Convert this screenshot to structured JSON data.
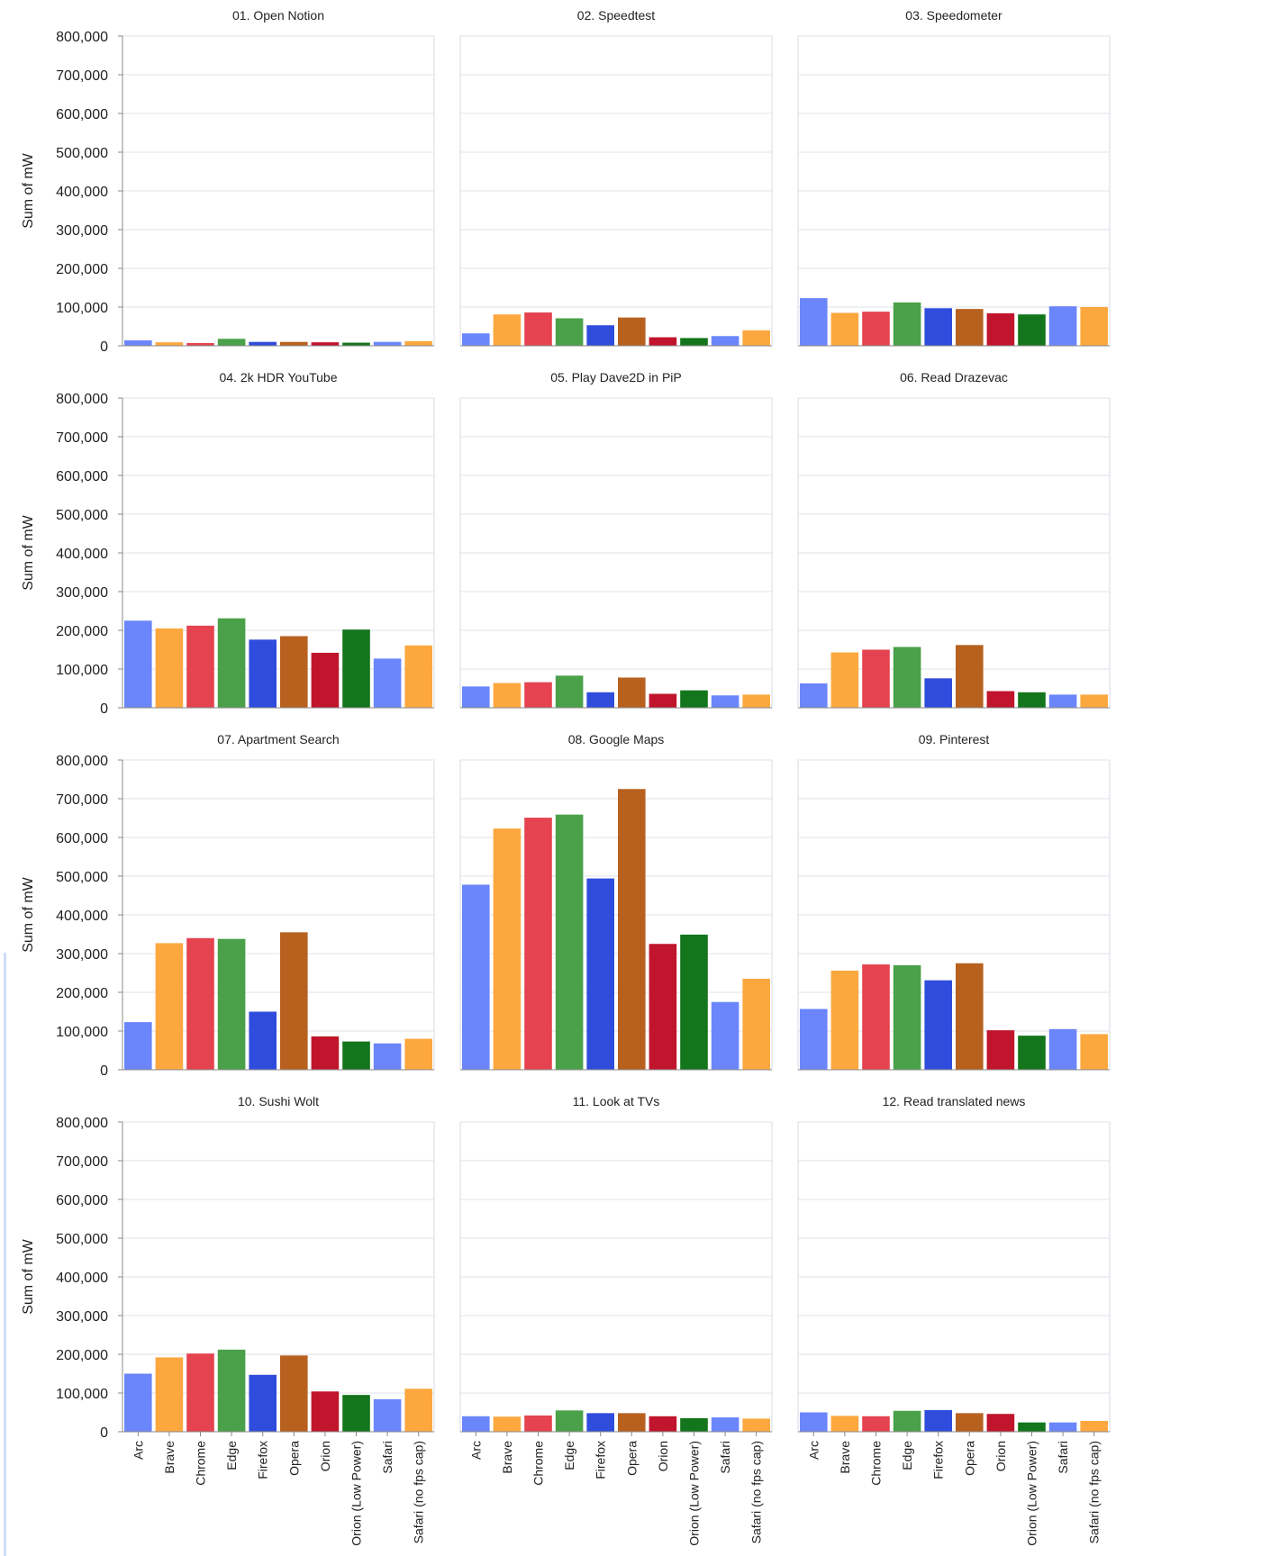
{
  "browsers": [
    "Arc",
    "Brave",
    "Chrome",
    "Edge",
    "Firefox",
    "Opera",
    "Orion",
    "Orion (Low Power)",
    "Safari",
    "Safari (no fps cap)"
  ],
  "colors": [
    "#6b86fb",
    "#fca83f",
    "#e4434f",
    "#4aa14a",
    "#2f4cdc",
    "#b8611f",
    "#c0152c",
    "#13751c",
    "#6b86fb",
    "#fca83f"
  ],
  "y_axis_label": "Sum of mW",
  "chart_data": [
    {
      "type": "bar",
      "title": "01. Open Notion",
      "ylabel": "Sum of mW",
      "ylim": [
        0,
        800000
      ],
      "yticks": [
        "0",
        "100,000",
        "200,000",
        "300,000",
        "400,000",
        "500,000",
        "600,000",
        "700,000",
        "800,000"
      ],
      "categories": [
        "Arc",
        "Brave",
        "Chrome",
        "Edge",
        "Firefox",
        "Opera",
        "Orion",
        "Orion (Low Power)",
        "Safari",
        "Safari (no fps cap)"
      ],
      "values": [
        14000,
        9000,
        7000,
        18000,
        10000,
        10000,
        9000,
        8000,
        10000,
        12000
      ]
    },
    {
      "type": "bar",
      "title": "02. Speedtest",
      "ylabel": "Sum of mW",
      "ylim": [
        0,
        800000
      ],
      "yticks": [
        "0",
        "100,000",
        "200,000",
        "300,000",
        "400,000",
        "500,000",
        "600,000",
        "700,000",
        "800,000"
      ],
      "categories": [
        "Arc",
        "Brave",
        "Chrome",
        "Edge",
        "Firefox",
        "Opera",
        "Orion",
        "Orion (Low Power)",
        "Safari",
        "Safari (no fps cap)"
      ],
      "values": [
        32000,
        81000,
        86000,
        71000,
        53000,
        73000,
        22000,
        20000,
        25000,
        40000
      ]
    },
    {
      "type": "bar",
      "title": "03. Speedometer",
      "ylabel": "Sum of mW",
      "ylim": [
        0,
        800000
      ],
      "yticks": [
        "0",
        "100,000",
        "200,000",
        "300,000",
        "400,000",
        "500,000",
        "600,000",
        "700,000",
        "800,000"
      ],
      "categories": [
        "Arc",
        "Brave",
        "Chrome",
        "Edge",
        "Firefox",
        "Opera",
        "Orion",
        "Orion (Low Power)",
        "Safari",
        "Safari (no fps cap)"
      ],
      "values": [
        123000,
        85000,
        88000,
        112000,
        97000,
        95000,
        84000,
        81000,
        102000,
        100000
      ]
    },
    {
      "type": "bar",
      "title": "04. 2k HDR YouTube",
      "ylabel": "Sum of mW",
      "ylim": [
        0,
        800000
      ],
      "yticks": [
        "0",
        "100,000",
        "200,000",
        "300,000",
        "400,000",
        "500,000",
        "600,000",
        "700,000",
        "800,000"
      ],
      "categories": [
        "Arc",
        "Brave",
        "Chrome",
        "Edge",
        "Firefox",
        "Opera",
        "Orion",
        "Orion (Low Power)",
        "Safari",
        "Safari (no fps cap)"
      ],
      "values": [
        225000,
        205000,
        212000,
        231000,
        176000,
        185000,
        142000,
        202000,
        127000,
        161000
      ]
    },
    {
      "type": "bar",
      "title": "05. Play Dave2D in PiP",
      "ylabel": "Sum of mW",
      "ylim": [
        0,
        800000
      ],
      "yticks": [
        "0",
        "100,000",
        "200,000",
        "300,000",
        "400,000",
        "500,000",
        "600,000",
        "700,000",
        "800,000"
      ],
      "categories": [
        "Arc",
        "Brave",
        "Chrome",
        "Edge",
        "Firefox",
        "Opera",
        "Orion",
        "Orion (Low Power)",
        "Safari",
        "Safari (no fps cap)"
      ],
      "values": [
        55000,
        64000,
        66000,
        83000,
        40000,
        78000,
        36000,
        45000,
        32000,
        34000
      ]
    },
    {
      "type": "bar",
      "title": "06. Read Drazevac",
      "ylabel": "Sum of mW",
      "ylim": [
        0,
        800000
      ],
      "yticks": [
        "0",
        "100,000",
        "200,000",
        "300,000",
        "400,000",
        "500,000",
        "600,000",
        "700,000",
        "800,000"
      ],
      "categories": [
        "Arc",
        "Brave",
        "Chrome",
        "Edge",
        "Firefox",
        "Opera",
        "Orion",
        "Orion (Low Power)",
        "Safari",
        "Safari (no fps cap)"
      ],
      "values": [
        63000,
        143000,
        150000,
        157000,
        76000,
        162000,
        43000,
        40000,
        34000,
        34000
      ]
    },
    {
      "type": "bar",
      "title": "07. Apartment Search",
      "ylabel": "Sum of mW",
      "ylim": [
        0,
        800000
      ],
      "yticks": [
        "0",
        "100,000",
        "200,000",
        "300,000",
        "400,000",
        "500,000",
        "600,000",
        "700,000",
        "800,000"
      ],
      "categories": [
        "Arc",
        "Brave",
        "Chrome",
        "Edge",
        "Firefox",
        "Opera",
        "Orion",
        "Orion (Low Power)",
        "Safari",
        "Safari (no fps cap)"
      ],
      "values": [
        123000,
        327000,
        340000,
        338000,
        150000,
        355000,
        86000,
        73000,
        68000,
        80000
      ]
    },
    {
      "type": "bar",
      "title": "08. Google Maps",
      "ylabel": "Sum of mW",
      "ylim": [
        0,
        800000
      ],
      "yticks": [
        "0",
        "100,000",
        "200,000",
        "300,000",
        "400,000",
        "500,000",
        "600,000",
        "700,000",
        "800,000"
      ],
      "categories": [
        "Arc",
        "Brave",
        "Chrome",
        "Edge",
        "Firefox",
        "Opera",
        "Orion",
        "Orion (Low Power)",
        "Safari",
        "Safari (no fps cap)"
      ],
      "values": [
        478000,
        623000,
        651000,
        659000,
        494000,
        725000,
        325000,
        349000,
        175000,
        235000
      ]
    },
    {
      "type": "bar",
      "title": "09. Pinterest",
      "ylabel": "Sum of mW",
      "ylim": [
        0,
        800000
      ],
      "yticks": [
        "0",
        "100,000",
        "200,000",
        "300,000",
        "400,000",
        "500,000",
        "600,000",
        "700,000",
        "800,000"
      ],
      "categories": [
        "Arc",
        "Brave",
        "Chrome",
        "Edge",
        "Firefox",
        "Opera",
        "Orion",
        "Orion (Low Power)",
        "Safari",
        "Safari (no fps cap)"
      ],
      "values": [
        157000,
        256000,
        272000,
        270000,
        231000,
        275000,
        102000,
        88000,
        105000,
        92000
      ]
    },
    {
      "type": "bar",
      "title": "10. Sushi Wolt",
      "ylabel": "Sum of mW",
      "ylim": [
        0,
        800000
      ],
      "yticks": [
        "0",
        "100,000",
        "200,000",
        "300,000",
        "400,000",
        "500,000",
        "600,000",
        "700,000",
        "800,000"
      ],
      "categories": [
        "Arc",
        "Brave",
        "Chrome",
        "Edge",
        "Firefox",
        "Opera",
        "Orion",
        "Orion (Low Power)",
        "Safari",
        "Safari (no fps cap)"
      ],
      "values": [
        150000,
        192000,
        202000,
        212000,
        147000,
        197000,
        104000,
        95000,
        84000,
        111000
      ]
    },
    {
      "type": "bar",
      "title": "11. Look at TVs",
      "ylabel": "Sum of mW",
      "ylim": [
        0,
        800000
      ],
      "yticks": [
        "0",
        "100,000",
        "200,000",
        "300,000",
        "400,000",
        "500,000",
        "600,000",
        "700,000",
        "800,000"
      ],
      "categories": [
        "Arc",
        "Brave",
        "Chrome",
        "Edge",
        "Firefox",
        "Opera",
        "Orion",
        "Orion (Low Power)",
        "Safari",
        "Safari (no fps cap)"
      ],
      "values": [
        40000,
        39000,
        42000,
        55000,
        48000,
        48000,
        40000,
        35000,
        37000,
        34000
      ]
    },
    {
      "type": "bar",
      "title": "12. Read translated news",
      "ylabel": "Sum of mW",
      "ylim": [
        0,
        800000
      ],
      "yticks": [
        "0",
        "100,000",
        "200,000",
        "300,000",
        "400,000",
        "500,000",
        "600,000",
        "700,000",
        "800,000"
      ],
      "categories": [
        "Arc",
        "Brave",
        "Chrome",
        "Edge",
        "Firefox",
        "Opera",
        "Orion",
        "Orion (Low Power)",
        "Safari",
        "Safari (no fps cap)"
      ],
      "values": [
        50000,
        41000,
        40000,
        54000,
        56000,
        48000,
        46000,
        24000,
        24000,
        28000
      ]
    }
  ]
}
